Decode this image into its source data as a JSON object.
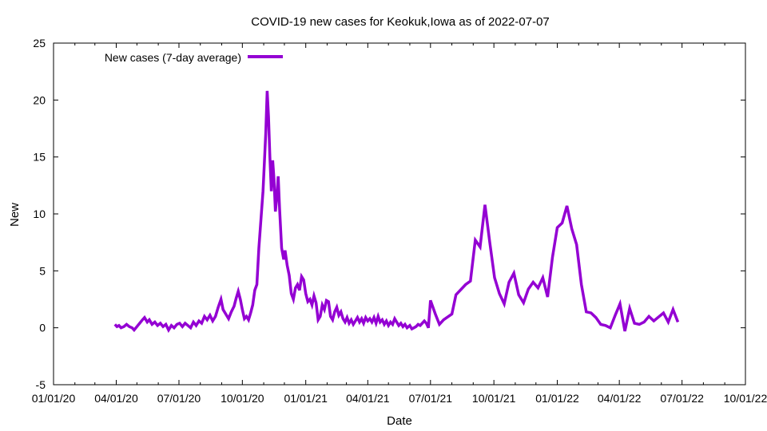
{
  "chart_data": {
    "type": "line",
    "title": "COVID-19 new cases for Keokuk,Iowa as of 2022-07-07",
    "xlabel": "Date",
    "ylabel": "New",
    "xlim": [
      "2020-01-01",
      "2022-10-01"
    ],
    "ylim": [
      -5,
      25
    ],
    "y_ticks": [
      -5,
      0,
      5,
      10,
      15,
      20,
      25
    ],
    "y_tick_labels": [
      "-5",
      "0",
      "5",
      "10",
      "15",
      "20",
      "25"
    ],
    "x_ticks": [
      "2020-01-01",
      "2020-04-01",
      "2020-07-01",
      "2020-10-01",
      "2021-01-01",
      "2021-04-01",
      "2021-07-01",
      "2021-10-01",
      "2022-01-01",
      "2022-04-01",
      "2022-07-01",
      "2022-10-01"
    ],
    "x_tick_labels": [
      "01/01/20",
      "04/01/20",
      "07/01/20",
      "10/01/20",
      "01/01/21",
      "04/01/21",
      "07/01/21",
      "10/01/21",
      "01/01/22",
      "04/01/22",
      "07/01/22",
      "10/01/22"
    ],
    "grid": false,
    "legend_position": "top-left",
    "series": [
      {
        "name": "New cases (7-day average)",
        "color": "#9400d3",
        "points": [
          [
            "2020-03-30",
            0.3
          ],
          [
            "2020-04-02",
            0.1
          ],
          [
            "2020-04-05",
            0.2
          ],
          [
            "2020-04-08",
            0.0
          ],
          [
            "2020-04-12",
            0.1
          ],
          [
            "2020-04-16",
            0.3
          ],
          [
            "2020-04-20",
            0.1
          ],
          [
            "2020-04-24",
            0.0
          ],
          [
            "2020-04-27",
            -0.2
          ],
          [
            "2020-05-01",
            0.1
          ],
          [
            "2020-05-05",
            0.4
          ],
          [
            "2020-05-09",
            0.7
          ],
          [
            "2020-05-12",
            0.9
          ],
          [
            "2020-05-16",
            0.5
          ],
          [
            "2020-05-19",
            0.7
          ],
          [
            "2020-05-23",
            0.3
          ],
          [
            "2020-05-27",
            0.5
          ],
          [
            "2020-05-31",
            0.2
          ],
          [
            "2020-06-04",
            0.4
          ],
          [
            "2020-06-08",
            0.1
          ],
          [
            "2020-06-12",
            0.3
          ],
          [
            "2020-06-16",
            -0.2
          ],
          [
            "2020-06-20",
            0.2
          ],
          [
            "2020-06-24",
            0.0
          ],
          [
            "2020-06-28",
            0.3
          ],
          [
            "2020-07-02",
            0.4
          ],
          [
            "2020-07-06",
            0.1
          ],
          [
            "2020-07-10",
            0.4
          ],
          [
            "2020-07-14",
            0.2
          ],
          [
            "2020-07-18",
            0.0
          ],
          [
            "2020-07-22",
            0.5
          ],
          [
            "2020-07-26",
            0.2
          ],
          [
            "2020-07-30",
            0.6
          ],
          [
            "2020-08-03",
            0.4
          ],
          [
            "2020-08-07",
            1.0
          ],
          [
            "2020-08-11",
            0.7
          ],
          [
            "2020-08-15",
            1.1
          ],
          [
            "2020-08-19",
            0.6
          ],
          [
            "2020-08-23",
            1.0
          ],
          [
            "2020-08-27",
            1.8
          ],
          [
            "2020-08-31",
            2.5
          ],
          [
            "2020-09-03",
            1.6
          ],
          [
            "2020-09-07",
            1.2
          ],
          [
            "2020-09-11",
            0.8
          ],
          [
            "2020-09-15",
            1.4
          ],
          [
            "2020-09-19",
            1.9
          ],
          [
            "2020-09-22",
            2.6
          ],
          [
            "2020-09-25",
            3.2
          ],
          [
            "2020-09-28",
            2.5
          ],
          [
            "2020-10-01",
            1.6
          ],
          [
            "2020-10-04",
            0.8
          ],
          [
            "2020-10-07",
            1.0
          ],
          [
            "2020-10-10",
            0.7
          ],
          [
            "2020-10-13",
            1.3
          ],
          [
            "2020-10-16",
            2.0
          ],
          [
            "2020-10-19",
            3.3
          ],
          [
            "2020-10-22",
            3.8
          ],
          [
            "2020-10-25",
            7.0
          ],
          [
            "2020-10-28",
            9.5
          ],
          [
            "2020-10-31",
            12.0
          ],
          [
            "2020-11-02",
            14.5
          ],
          [
            "2020-11-04",
            17.2
          ],
          [
            "2020-11-06",
            20.8
          ],
          [
            "2020-11-08",
            18.5
          ],
          [
            "2020-11-10",
            15.0
          ],
          [
            "2020-11-12",
            12.0
          ],
          [
            "2020-11-14",
            14.7
          ],
          [
            "2020-11-16",
            13.0
          ],
          [
            "2020-11-18",
            10.2
          ],
          [
            "2020-11-20",
            11.5
          ],
          [
            "2020-11-22",
            13.3
          ],
          [
            "2020-11-24",
            10.5
          ],
          [
            "2020-11-27",
            7.0
          ],
          [
            "2020-11-30",
            6.0
          ],
          [
            "2020-12-02",
            6.8
          ],
          [
            "2020-12-05",
            5.5
          ],
          [
            "2020-12-08",
            4.6
          ],
          [
            "2020-12-11",
            3.0
          ],
          [
            "2020-12-14",
            2.5
          ],
          [
            "2020-12-17",
            3.5
          ],
          [
            "2020-12-20",
            3.8
          ],
          [
            "2020-12-23",
            3.3
          ],
          [
            "2020-12-26",
            4.5
          ],
          [
            "2020-12-29",
            4.2
          ],
          [
            "2021-01-01",
            3.0
          ],
          [
            "2021-01-04",
            2.3
          ],
          [
            "2021-01-07",
            2.5
          ],
          [
            "2021-01-10",
            2.0
          ],
          [
            "2021-01-13",
            2.8
          ],
          [
            "2021-01-16",
            2.2
          ],
          [
            "2021-01-19",
            0.7
          ],
          [
            "2021-01-22",
            1.0
          ],
          [
            "2021-01-25",
            2.0
          ],
          [
            "2021-01-28",
            1.6
          ],
          [
            "2021-01-31",
            2.4
          ],
          [
            "2021-02-03",
            2.3
          ],
          [
            "2021-02-06",
            1.0
          ],
          [
            "2021-02-09",
            0.7
          ],
          [
            "2021-02-12",
            1.4
          ],
          [
            "2021-02-15",
            1.8
          ],
          [
            "2021-02-18",
            1.1
          ],
          [
            "2021-02-21",
            1.4
          ],
          [
            "2021-02-24",
            0.8
          ],
          [
            "2021-02-27",
            0.5
          ],
          [
            "2021-03-02",
            0.9
          ],
          [
            "2021-03-05",
            0.4
          ],
          [
            "2021-03-08",
            0.7
          ],
          [
            "2021-03-11",
            0.3
          ],
          [
            "2021-03-14",
            0.6
          ],
          [
            "2021-03-17",
            0.9
          ],
          [
            "2021-03-20",
            0.5
          ],
          [
            "2021-03-23",
            0.8
          ],
          [
            "2021-03-26",
            0.4
          ],
          [
            "2021-03-29",
            0.9
          ],
          [
            "2021-04-01",
            0.6
          ],
          [
            "2021-04-04",
            0.8
          ],
          [
            "2021-04-07",
            0.5
          ],
          [
            "2021-04-10",
            0.9
          ],
          [
            "2021-04-13",
            0.4
          ],
          [
            "2021-04-16",
            1.0
          ],
          [
            "2021-04-19",
            0.5
          ],
          [
            "2021-04-22",
            0.7
          ],
          [
            "2021-04-25",
            0.3
          ],
          [
            "2021-04-28",
            0.6
          ],
          [
            "2021-05-01",
            0.2
          ],
          [
            "2021-05-04",
            0.5
          ],
          [
            "2021-05-07",
            0.3
          ],
          [
            "2021-05-10",
            0.8
          ],
          [
            "2021-05-13",
            0.5
          ],
          [
            "2021-05-16",
            0.2
          ],
          [
            "2021-05-19",
            0.4
          ],
          [
            "2021-05-22",
            0.1
          ],
          [
            "2021-05-25",
            0.3
          ],
          [
            "2021-05-28",
            0.0
          ],
          [
            "2021-06-01",
            0.2
          ],
          [
            "2021-06-04",
            -0.1
          ],
          [
            "2021-06-07",
            0.0
          ],
          [
            "2021-06-10",
            0.1
          ],
          [
            "2021-06-13",
            0.3
          ],
          [
            "2021-06-16",
            0.2
          ],
          [
            "2021-06-19",
            0.4
          ],
          [
            "2021-06-22",
            0.6
          ],
          [
            "2021-06-25",
            0.4
          ],
          [
            "2021-06-28",
            0.0
          ],
          [
            "2021-07-01",
            2.4
          ],
          [
            "2021-07-08",
            1.2
          ],
          [
            "2021-07-14",
            0.3
          ],
          [
            "2021-07-20",
            0.7
          ],
          [
            "2021-08-01",
            1.2
          ],
          [
            "2021-08-07",
            2.9
          ],
          [
            "2021-08-21",
            3.8
          ],
          [
            "2021-08-28",
            4.1
          ],
          [
            "2021-09-04",
            7.7
          ],
          [
            "2021-09-11",
            7.1
          ],
          [
            "2021-09-18",
            10.8
          ],
          [
            "2021-09-25",
            7.5
          ],
          [
            "2021-10-02",
            4.4
          ],
          [
            "2021-10-09",
            3.0
          ],
          [
            "2021-10-16",
            2.1
          ],
          [
            "2021-10-23",
            4.0
          ],
          [
            "2021-10-30",
            4.8
          ],
          [
            "2021-11-06",
            2.9
          ],
          [
            "2021-11-13",
            2.2
          ],
          [
            "2021-11-20",
            3.4
          ],
          [
            "2021-11-27",
            4.0
          ],
          [
            "2021-12-04",
            3.5
          ],
          [
            "2021-12-11",
            4.4
          ],
          [
            "2021-12-18",
            2.7
          ],
          [
            "2021-12-25",
            6.2
          ],
          [
            "2022-01-01",
            8.8
          ],
          [
            "2022-01-08",
            9.2
          ],
          [
            "2022-01-15",
            10.7
          ],
          [
            "2022-01-22",
            8.7
          ],
          [
            "2022-01-29",
            7.3
          ],
          [
            "2022-02-05",
            3.8
          ],
          [
            "2022-02-12",
            1.4
          ],
          [
            "2022-02-19",
            1.3
          ],
          [
            "2022-02-26",
            0.9
          ],
          [
            "2022-03-05",
            0.3
          ],
          [
            "2022-03-12",
            0.2
          ],
          [
            "2022-03-19",
            0.0
          ],
          [
            "2022-03-26",
            1.1
          ],
          [
            "2022-04-02",
            2.1
          ],
          [
            "2022-04-09",
            -0.3
          ],
          [
            "2022-04-16",
            1.7
          ],
          [
            "2022-04-23",
            0.4
          ],
          [
            "2022-04-30",
            0.3
          ],
          [
            "2022-05-07",
            0.5
          ],
          [
            "2022-05-14",
            1.0
          ],
          [
            "2022-05-21",
            0.6
          ],
          [
            "2022-06-04",
            1.3
          ],
          [
            "2022-06-11",
            0.5
          ],
          [
            "2022-06-18",
            1.6
          ],
          [
            "2022-06-25",
            0.5
          ]
        ]
      }
    ]
  }
}
